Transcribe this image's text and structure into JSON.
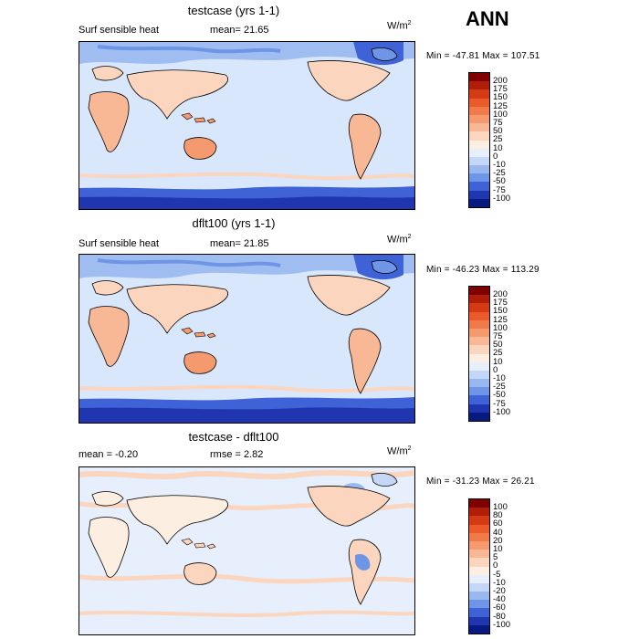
{
  "season": "ANN",
  "panels": [
    {
      "title": "testcase (yrs 1-1)",
      "left_label": "Surf sensible heat",
      "stat": "mean=  21.65",
      "units": "W/m",
      "units_exp": "2",
      "minmax": "Min = -47.81 Max = 107.51",
      "colorbar_labels": [
        "200",
        "175",
        "150",
        "125",
        "100",
        "75",
        "50",
        "25",
        "10",
        "0",
        "-10",
        "-25",
        "-50",
        "-75",
        "-100"
      ],
      "colorbar_colors": [
        "#7f0000",
        "#b01e0a",
        "#d43a14",
        "#ea5a2a",
        "#f07a4a",
        "#f49a6e",
        "#f8b896",
        "#fbd5bd",
        "#fdeee2",
        "#e6effb",
        "#c4d7f6",
        "#99b8ef",
        "#6f95e6",
        "#3f62d6",
        "#1f36b0",
        "#071a80"
      ]
    },
    {
      "title": "dflt100 (yrs 1-1)",
      "left_label": "Surf sensible heat",
      "stat": "mean=  21.85",
      "units": "W/m",
      "units_exp": "2",
      "minmax": "Min = -46.23 Max = 113.29",
      "colorbar_labels": [
        "200",
        "175",
        "150",
        "125",
        "100",
        "75",
        "50",
        "25",
        "10",
        "0",
        "-10",
        "-25",
        "-50",
        "-75",
        "-100"
      ],
      "colorbar_colors": [
        "#7f0000",
        "#b01e0a",
        "#d43a14",
        "#ea5a2a",
        "#f07a4a",
        "#f49a6e",
        "#f8b896",
        "#fbd5bd",
        "#fdeee2",
        "#e6effb",
        "#c4d7f6",
        "#99b8ef",
        "#6f95e6",
        "#3f62d6",
        "#1f36b0",
        "#071a80"
      ]
    },
    {
      "title": "testcase - dflt100",
      "left_label": "mean =  -0.20",
      "stat": "rmse =   2.82",
      "units": "W/m",
      "units_exp": "2",
      "minmax": "Min = -31.23 Max =  26.21",
      "colorbar_labels": [
        "100",
        "80",
        "60",
        "40",
        "20",
        "10",
        "5",
        "0",
        "-5",
        "-10",
        "-20",
        "-40",
        "-60",
        "-80",
        "-100"
      ],
      "colorbar_colors": [
        "#7f0000",
        "#b01e0a",
        "#d43a14",
        "#ea5a2a",
        "#f07a4a",
        "#f49a6e",
        "#f8b896",
        "#fbd5bd",
        "#fdeee2",
        "#e6effb",
        "#c4d7f6",
        "#99b8ef",
        "#6f95e6",
        "#3f62d6",
        "#1f36b0",
        "#071a80"
      ]
    }
  ]
}
